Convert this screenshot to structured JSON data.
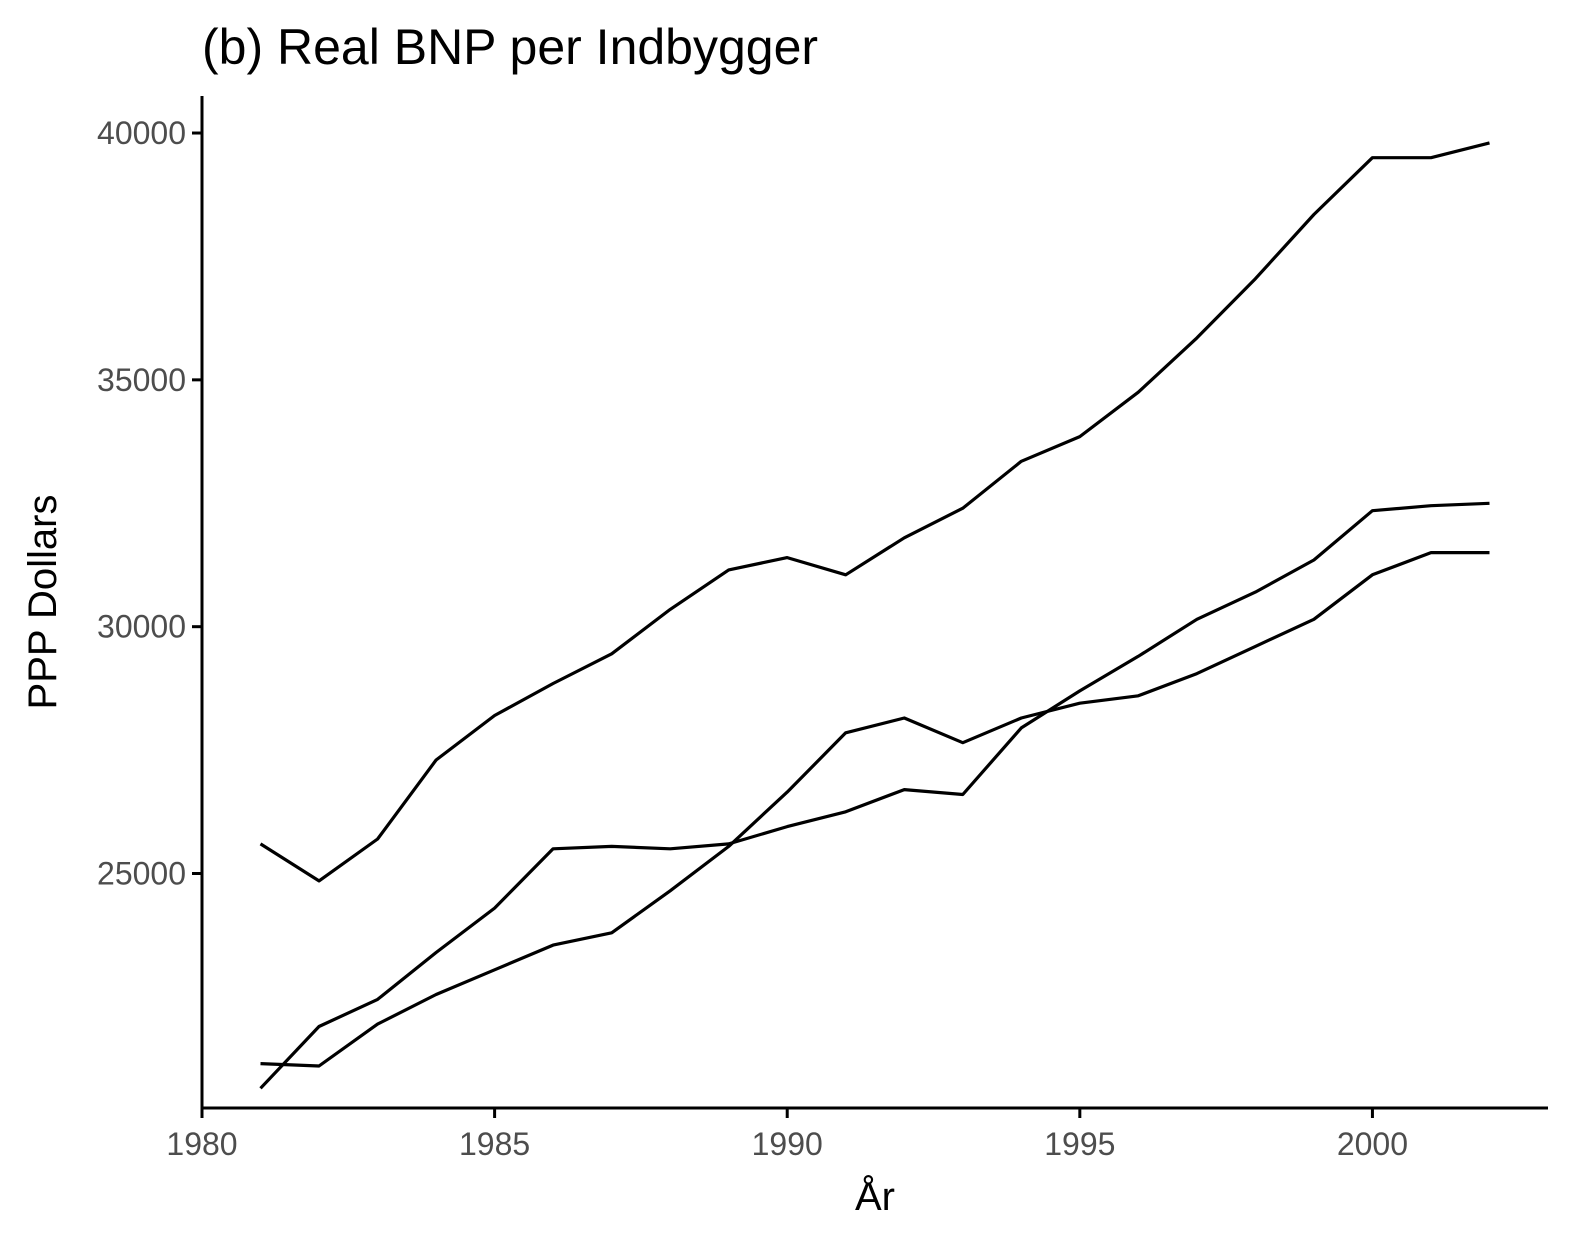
{
  "chart_data": {
    "type": "line",
    "title": "(b) Real BNP per Indbygger",
    "xlabel": "År",
    "ylabel": "PPP Dollars",
    "xlim": [
      1980,
      2003
    ],
    "ylim": [
      20250,
      40750
    ],
    "x_ticks": [
      1980,
      1985,
      1990,
      1995,
      2000
    ],
    "y_ticks": [
      25000,
      30000,
      35000,
      40000
    ],
    "x_tick_labels": [
      "1980",
      "1985",
      "1990",
      "1995",
      "2000"
    ],
    "y_tick_labels": [
      "25000",
      "30000",
      "35000",
      "40000"
    ],
    "grid": false,
    "legend": "none",
    "x": [
      1981,
      1982,
      1983,
      1984,
      1985,
      1986,
      1987,
      1988,
      1989,
      1990,
      1991,
      1992,
      1993,
      1994,
      1995,
      1996,
      1997,
      1998,
      1999,
      2000,
      2001,
      2002
    ],
    "series": [
      {
        "values": [
          25600,
          24850,
          25700,
          27300,
          28200,
          28850,
          29450,
          30350,
          31150,
          31400,
          31050,
          31800,
          32400,
          33350,
          33850,
          34750,
          35850,
          37050,
          38350,
          39500,
          39500,
          39800
        ]
      },
      {
        "values": [
          21150,
          21100,
          21950,
          22550,
          23050,
          23550,
          23800,
          24650,
          25550,
          26650,
          27850,
          28150,
          27650,
          28150,
          28450,
          28600,
          29050,
          29600,
          30150,
          31050,
          31500,
          31500
        ]
      },
      {
        "values": [
          20650,
          21900,
          22450,
          23400,
          24300,
          25500,
          25550,
          25500,
          25600,
          25950,
          26250,
          26700,
          26600,
          27950,
          28700,
          29400,
          30150,
          30700,
          31350,
          32350,
          32450,
          32500
        ]
      }
    ]
  }
}
